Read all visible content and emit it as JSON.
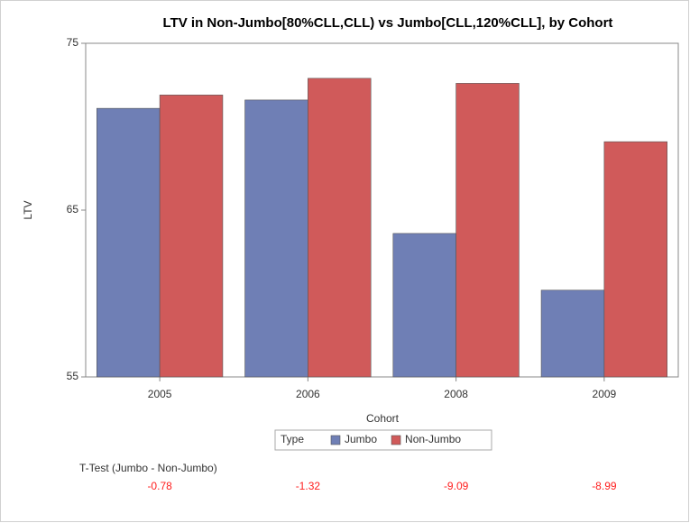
{
  "chart_data": {
    "type": "bar",
    "title": "LTV in Non-Jumbo[80%CLL,CLL) vs Jumbo[CLL,120%CLL], by Cohort",
    "x_label": "Cohort",
    "y_label": "LTV",
    "categories": [
      "2005",
      "2006",
      "2008",
      "2009"
    ],
    "series": [
      {
        "name": "Jumbo",
        "color": "#6f7fb5",
        "values": [
          71.1,
          71.6,
          63.6,
          60.2
        ]
      },
      {
        "name": "Non-Jumbo",
        "color": "#d05a5a",
        "values": [
          71.9,
          72.9,
          72.6,
          69.1
        ]
      }
    ],
    "ylim": [
      55,
      75
    ],
    "yticks": [
      55,
      65,
      75
    ],
    "legend_title": "Type",
    "ttest": {
      "label": "T-Test (Jumbo - Non-Jumbo)",
      "values": [
        -0.78,
        -1.32,
        -9.09,
        -8.99
      ]
    }
  }
}
